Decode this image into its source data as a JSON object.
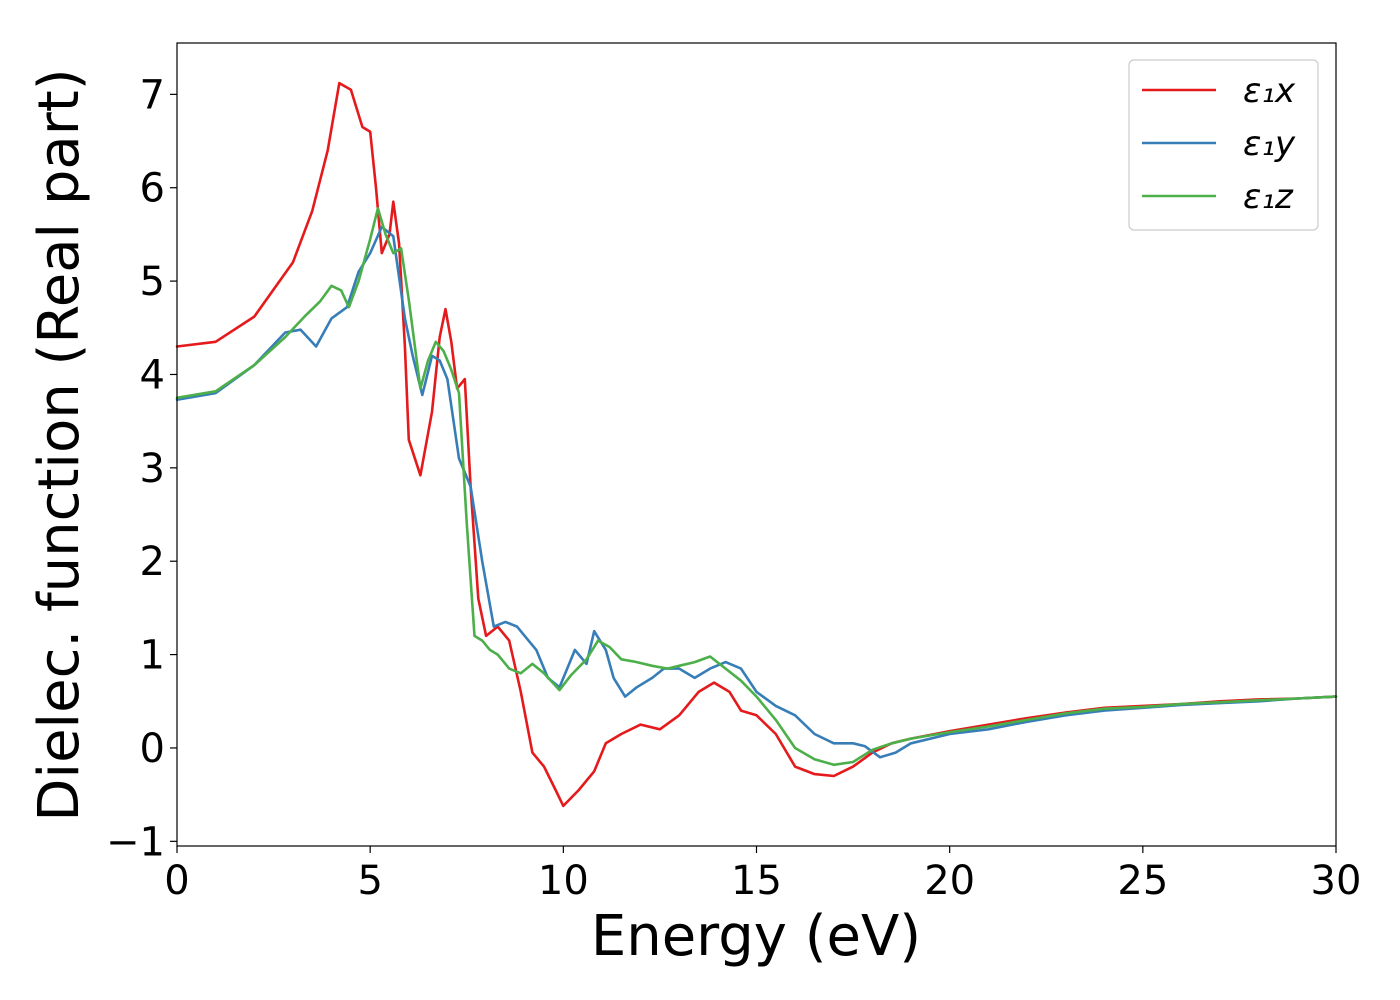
{
  "chart_data": {
    "type": "line",
    "title": "",
    "xlabel": "Energy (eV)",
    "ylabel": "Dielec. function (Real part)",
    "xlim": [
      0,
      30
    ],
    "ylim": [
      -1.05,
      7.55
    ],
    "xticks": [
      0,
      5,
      10,
      15,
      20,
      25,
      30
    ],
    "yticks": [
      -1,
      0,
      1,
      2,
      3,
      4,
      5,
      6,
      7
    ],
    "xtick_labels": [
      "0",
      "5",
      "10",
      "15",
      "20",
      "25",
      "30"
    ],
    "ytick_labels": [
      "−1",
      "0",
      "1",
      "2",
      "3",
      "4",
      "5",
      "6",
      "7"
    ],
    "grid": false,
    "legend_position": "upper right",
    "series": [
      {
        "name": "ε₁x",
        "color": "#e41a1c",
        "points": [
          [
            0,
            4.3
          ],
          [
            1,
            4.35
          ],
          [
            2,
            4.62
          ],
          [
            3,
            5.2
          ],
          [
            3.5,
            5.75
          ],
          [
            3.9,
            6.4
          ],
          [
            4.2,
            7.12
          ],
          [
            4.5,
            7.05
          ],
          [
            4.8,
            6.65
          ],
          [
            5.0,
            6.6
          ],
          [
            5.15,
            6.0
          ],
          [
            5.3,
            5.3
          ],
          [
            5.5,
            5.5
          ],
          [
            5.6,
            5.85
          ],
          [
            5.75,
            5.4
          ],
          [
            5.9,
            4.3
          ],
          [
            6.0,
            3.3
          ],
          [
            6.3,
            2.92
          ],
          [
            6.6,
            3.6
          ],
          [
            6.8,
            4.4
          ],
          [
            6.95,
            4.7
          ],
          [
            7.1,
            4.35
          ],
          [
            7.25,
            3.85
          ],
          [
            7.45,
            3.95
          ],
          [
            7.6,
            2.8
          ],
          [
            7.8,
            1.6
          ],
          [
            8.0,
            1.2
          ],
          [
            8.3,
            1.3
          ],
          [
            8.6,
            1.15
          ],
          [
            8.9,
            0.6
          ],
          [
            9.2,
            -0.05
          ],
          [
            9.5,
            -0.2
          ],
          [
            9.8,
            -0.45
          ],
          [
            10.0,
            -0.62
          ],
          [
            10.4,
            -0.45
          ],
          [
            10.8,
            -0.25
          ],
          [
            11.1,
            0.05
          ],
          [
            11.5,
            0.15
          ],
          [
            12.0,
            0.25
          ],
          [
            12.5,
            0.2
          ],
          [
            13.0,
            0.35
          ],
          [
            13.5,
            0.6
          ],
          [
            13.9,
            0.7
          ],
          [
            14.3,
            0.6
          ],
          [
            14.6,
            0.4
          ],
          [
            15.0,
            0.35
          ],
          [
            15.5,
            0.15
          ],
          [
            16.0,
            -0.2
          ],
          [
            16.5,
            -0.28
          ],
          [
            17.0,
            -0.3
          ],
          [
            17.5,
            -0.2
          ],
          [
            18.0,
            -0.05
          ],
          [
            18.5,
            0.05
          ],
          [
            19.0,
            0.1
          ],
          [
            20.0,
            0.18
          ],
          [
            21.0,
            0.25
          ],
          [
            22.0,
            0.32
          ],
          [
            23.0,
            0.38
          ],
          [
            24.0,
            0.43
          ],
          [
            25.0,
            0.45
          ],
          [
            26.0,
            0.47
          ],
          [
            27.0,
            0.5
          ],
          [
            28.0,
            0.52
          ],
          [
            29.0,
            0.53
          ],
          [
            30.0,
            0.55
          ]
        ]
      },
      {
        "name": "ε₁y",
        "color": "#377eb8",
        "points": [
          [
            0,
            3.73
          ],
          [
            1,
            3.8
          ],
          [
            2,
            4.1
          ],
          [
            2.8,
            4.45
          ],
          [
            3.2,
            4.48
          ],
          [
            3.6,
            4.3
          ],
          [
            4.0,
            4.6
          ],
          [
            4.4,
            4.72
          ],
          [
            4.7,
            5.1
          ],
          [
            5.0,
            5.3
          ],
          [
            5.3,
            5.58
          ],
          [
            5.6,
            5.48
          ],
          [
            5.9,
            4.6
          ],
          [
            6.1,
            4.2
          ],
          [
            6.35,
            3.78
          ],
          [
            6.6,
            4.2
          ],
          [
            6.8,
            4.15
          ],
          [
            7.0,
            3.95
          ],
          [
            7.3,
            3.1
          ],
          [
            7.6,
            2.8
          ],
          [
            7.9,
            2.0
          ],
          [
            8.2,
            1.3
          ],
          [
            8.5,
            1.35
          ],
          [
            8.8,
            1.3
          ],
          [
            9.0,
            1.2
          ],
          [
            9.3,
            1.05
          ],
          [
            9.6,
            0.75
          ],
          [
            9.9,
            0.65
          ],
          [
            10.1,
            0.85
          ],
          [
            10.3,
            1.05
          ],
          [
            10.6,
            0.9
          ],
          [
            10.8,
            1.25
          ],
          [
            11.1,
            1.05
          ],
          [
            11.3,
            0.75
          ],
          [
            11.6,
            0.55
          ],
          [
            11.9,
            0.65
          ],
          [
            12.3,
            0.75
          ],
          [
            12.6,
            0.85
          ],
          [
            13.0,
            0.85
          ],
          [
            13.4,
            0.75
          ],
          [
            13.8,
            0.85
          ],
          [
            14.2,
            0.92
          ],
          [
            14.6,
            0.85
          ],
          [
            15.0,
            0.6
          ],
          [
            15.5,
            0.45
          ],
          [
            16.0,
            0.35
          ],
          [
            16.5,
            0.15
          ],
          [
            17.0,
            0.05
          ],
          [
            17.5,
            0.05
          ],
          [
            17.8,
            0.02
          ],
          [
            18.2,
            -0.1
          ],
          [
            18.6,
            -0.05
          ],
          [
            19.0,
            0.05
          ],
          [
            20.0,
            0.15
          ],
          [
            21.0,
            0.2
          ],
          [
            22.0,
            0.28
          ],
          [
            23.0,
            0.35
          ],
          [
            24.0,
            0.4
          ],
          [
            25.0,
            0.43
          ],
          [
            26.0,
            0.46
          ],
          [
            27.0,
            0.48
          ],
          [
            28.0,
            0.5
          ],
          [
            29.0,
            0.53
          ],
          [
            30.0,
            0.55
          ]
        ]
      },
      {
        "name": "ε₁z",
        "color": "#4daf4a",
        "points": [
          [
            0,
            3.75
          ],
          [
            1,
            3.82
          ],
          [
            2,
            4.1
          ],
          [
            2.8,
            4.4
          ],
          [
            3.3,
            4.62
          ],
          [
            3.7,
            4.78
          ],
          [
            4.0,
            4.95
          ],
          [
            4.25,
            4.9
          ],
          [
            4.45,
            4.72
          ],
          [
            4.7,
            5.0
          ],
          [
            5.0,
            5.45
          ],
          [
            5.2,
            5.78
          ],
          [
            5.4,
            5.5
          ],
          [
            5.6,
            5.3
          ],
          [
            5.8,
            5.35
          ],
          [
            6.0,
            4.8
          ],
          [
            6.3,
            3.85
          ],
          [
            6.5,
            4.15
          ],
          [
            6.7,
            4.35
          ],
          [
            6.9,
            4.25
          ],
          [
            7.1,
            4.05
          ],
          [
            7.3,
            3.8
          ],
          [
            7.5,
            2.4
          ],
          [
            7.7,
            1.2
          ],
          [
            7.9,
            1.15
          ],
          [
            8.1,
            1.05
          ],
          [
            8.3,
            1.0
          ],
          [
            8.6,
            0.85
          ],
          [
            8.9,
            0.8
          ],
          [
            9.2,
            0.9
          ],
          [
            9.5,
            0.8
          ],
          [
            9.9,
            0.62
          ],
          [
            10.2,
            0.78
          ],
          [
            10.6,
            0.95
          ],
          [
            10.9,
            1.15
          ],
          [
            11.2,
            1.08
          ],
          [
            11.5,
            0.95
          ],
          [
            11.9,
            0.92
          ],
          [
            12.3,
            0.88
          ],
          [
            12.7,
            0.85
          ],
          [
            13.0,
            0.88
          ],
          [
            13.4,
            0.92
          ],
          [
            13.8,
            0.98
          ],
          [
            14.2,
            0.85
          ],
          [
            14.6,
            0.72
          ],
          [
            15.0,
            0.55
          ],
          [
            15.5,
            0.3
          ],
          [
            16.0,
            0.0
          ],
          [
            16.5,
            -0.12
          ],
          [
            17.0,
            -0.18
          ],
          [
            17.5,
            -0.15
          ],
          [
            18.0,
            -0.02
          ],
          [
            18.5,
            0.05
          ],
          [
            19.0,
            0.1
          ],
          [
            20.0,
            0.17
          ],
          [
            21.0,
            0.23
          ],
          [
            22.0,
            0.3
          ],
          [
            23.0,
            0.37
          ],
          [
            24.0,
            0.42
          ],
          [
            25.0,
            0.44
          ],
          [
            26.0,
            0.47
          ],
          [
            27.0,
            0.49
          ],
          [
            28.0,
            0.51
          ],
          [
            29.0,
            0.53
          ],
          [
            30.0,
            0.55
          ]
        ]
      }
    ]
  }
}
